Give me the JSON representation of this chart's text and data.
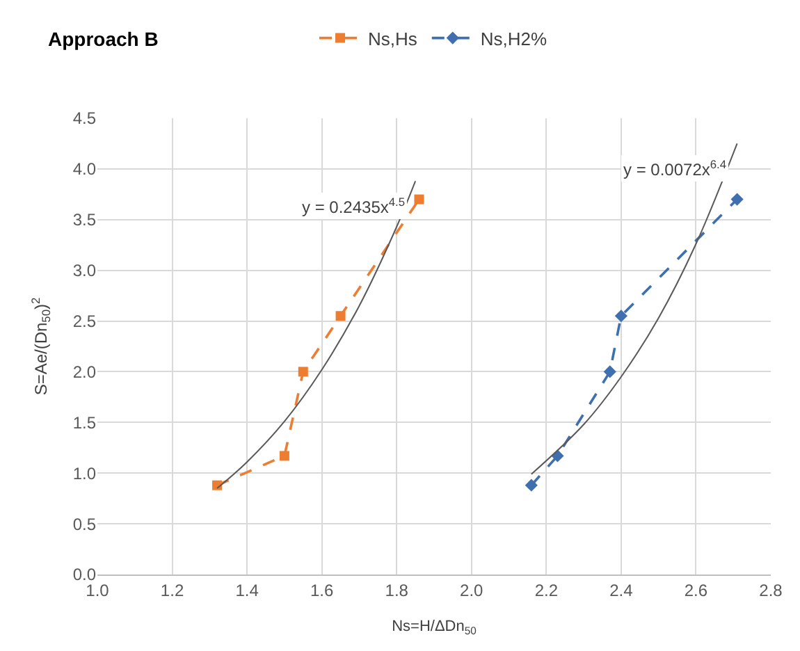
{
  "chart_data": {
    "type": "line",
    "title": "Approach B",
    "xlabel": "Ns=H/ΔDn$_{50}$",
    "ylabel": "S=Ae/(Dn$_{50}$)$^{2}$",
    "series": [
      {
        "name": "Ns,Hs",
        "color": "#ed7d31",
        "x": [
          1.32,
          1.5,
          1.55,
          1.65,
          1.86
        ],
        "values": [
          0.88,
          1.17,
          2.0,
          2.55,
          3.7
        ],
        "marker": "square",
        "line_style": "dashed"
      },
      {
        "name": "Ns,H2%",
        "color": "#3f6fae",
        "x": [
          2.16,
          2.23,
          2.37,
          2.4,
          2.71
        ],
        "values": [
          0.88,
          1.17,
          2.0,
          2.55,
          3.7
        ],
        "marker": "diamond",
        "line_style": "dashed"
      },
      {
        "color": "#595959",
        "x": [
          1.32,
          1.4,
          1.5,
          1.6,
          1.7,
          1.8,
          1.85
        ],
        "values": [
          0.85,
          1.11,
          1.51,
          2.02,
          2.65,
          3.43,
          3.88
        ],
        "marker": "none",
        "line_style": "solid"
      },
      {
        "color": "#595959",
        "x": [
          2.16,
          2.3,
          2.4,
          2.5,
          2.6,
          2.71
        ],
        "values": [
          0.99,
          1.48,
          1.95,
          2.53,
          3.26,
          4.25
        ],
        "marker": "none",
        "line_style": "solid"
      }
    ],
    "annotations": [
      "y = 0.2435x$^{4.5}$",
      "y = 0.0072x$^{6.4}$"
    ],
    "xlim": [
      1.0,
      2.8
    ],
    "ylim": [
      0,
      4.5
    ],
    "xticks": [
      {
        "value": 1.0,
        "label": "1.0"
      },
      1.2,
      1.4,
      1.6,
      1.8,
      {
        "value": 2.0,
        "label": "2.0"
      },
      2.2,
      2.4,
      2.6,
      2.8
    ],
    "yticks": [
      {
        "value": 0,
        "label": "0.0"
      },
      0.5,
      {
        "value": 1,
        "label": "1.0"
      },
      1.5,
      {
        "value": 2,
        "label": "2.0"
      },
      2.5,
      {
        "value": 3,
        "label": "3.0"
      },
      3.5,
      {
        "value": 4,
        "label": "4.0"
      },
      4.5
    ],
    "grid": true,
    "legend": "top"
  }
}
